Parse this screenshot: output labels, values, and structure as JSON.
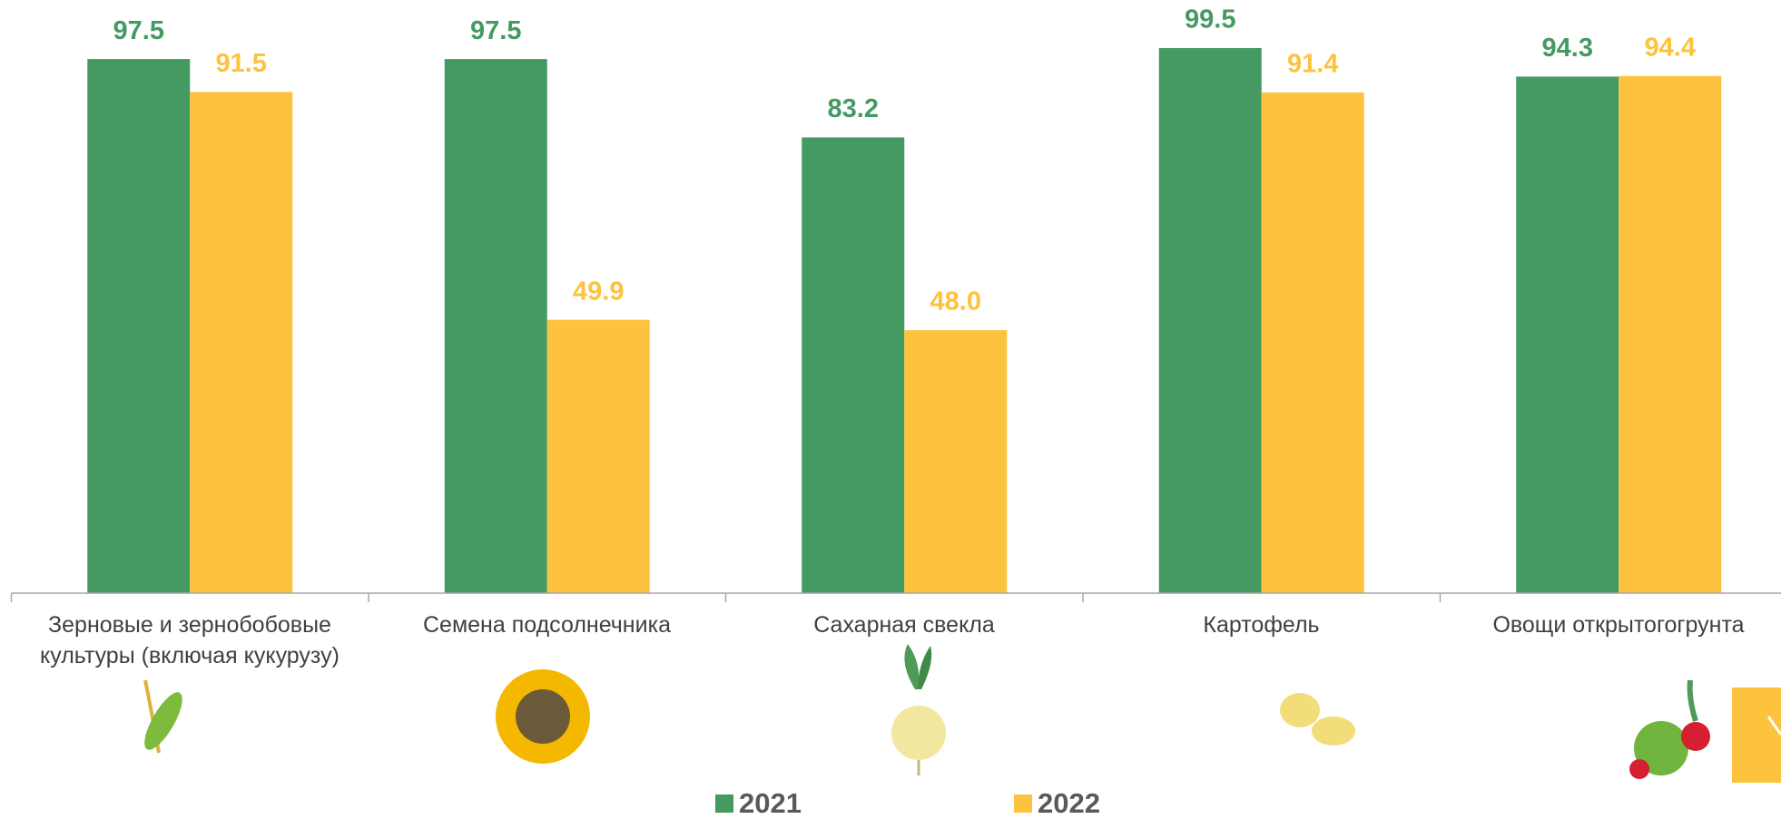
{
  "chart_data": {
    "type": "bar",
    "categories": [
      "Зерновые и зернобобовые культуры (включая кукурузу)",
      "Семена подсолнечника",
      "Сахарная свекла",
      "Картофель",
      "Овощи открытогогрунта"
    ],
    "series": [
      {
        "name": "2021",
        "color": "#459a62",
        "values": [
          97.5,
          97.5,
          83.2,
          99.5,
          94.3
        ]
      },
      {
        "name": "2022",
        "color": "#fdc23e",
        "values": [
          91.5,
          49.9,
          48.0,
          91.4,
          94.4
        ],
        "value_labels": [
          "91.5",
          "49.9",
          "48.0",
          "91.4",
          "94.4"
        ]
      }
    ],
    "ylim": [
      0,
      100
    ],
    "grid": false
  }
}
